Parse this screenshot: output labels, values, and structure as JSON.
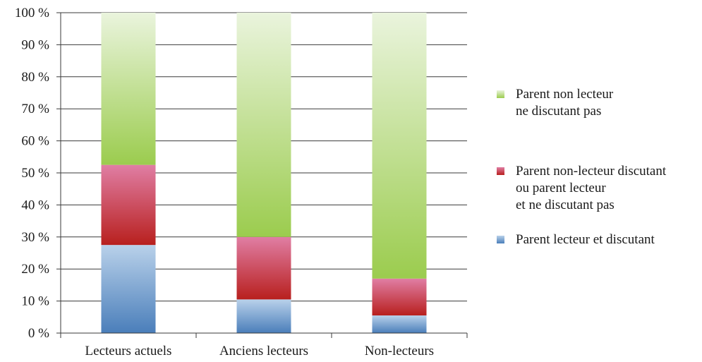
{
  "chart_data": {
    "type": "bar",
    "stacked": true,
    "percent_stacked": true,
    "categories": [
      "Lecteurs actuels",
      "Anciens lecteurs",
      "Non-lecteurs"
    ],
    "series": [
      {
        "name": "Parent lecteur et discutant",
        "values": [
          27.5,
          10.5,
          5.5
        ],
        "color": "#4f81bd"
      },
      {
        "name": "Parent non-lecteur discutant\nou parent lecteur\net ne discutant pas",
        "values": [
          25,
          19.5,
          11.5
        ],
        "color": "#c0504d"
      },
      {
        "name": "Parent non lecteur\nne discutant pas",
        "values": [
          47.5,
          70,
          83
        ],
        "color": "#9bbb59"
      }
    ],
    "yticks": [
      "0 %",
      "10 %",
      "20 %",
      "30 %",
      "40 %",
      "50 %",
      "60 %",
      "70 %",
      "80 %",
      "90 %",
      "100 %"
    ],
    "ylim": [
      0,
      100
    ],
    "grid": true,
    "legend_position": "right",
    "title": "",
    "xlabel": "",
    "ylabel": ""
  }
}
